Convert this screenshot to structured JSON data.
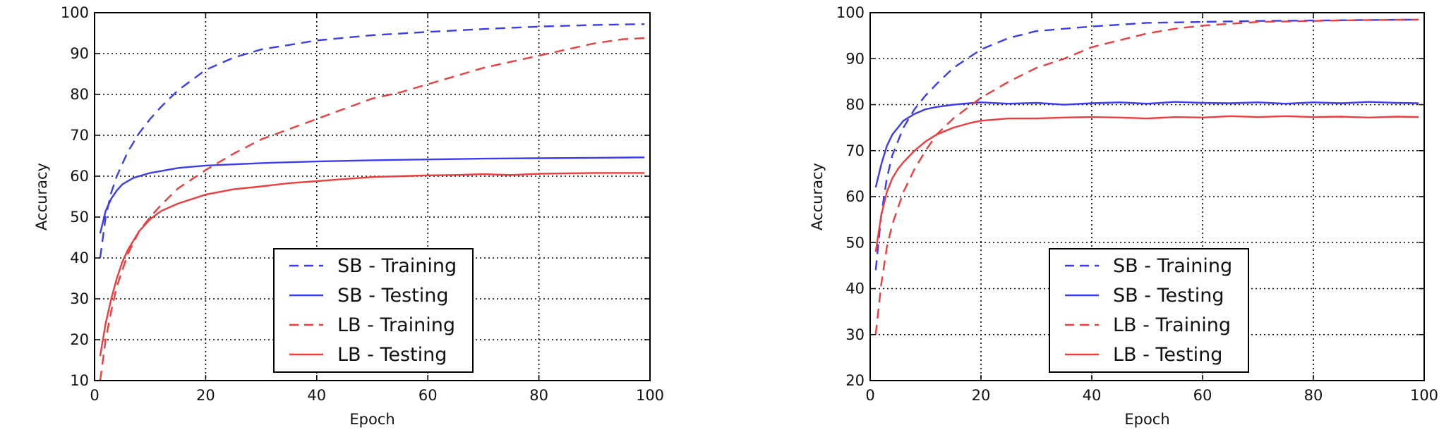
{
  "chart_data": [
    {
      "type": "line",
      "xlabel": "Epoch",
      "ylabel": "Accuracy",
      "xlim": [
        0,
        100
      ],
      "ylim": [
        10,
        100
      ],
      "xticks": [
        0,
        20,
        40,
        60,
        80,
        100
      ],
      "yticks": [
        10,
        20,
        30,
        40,
        50,
        60,
        70,
        80,
        90,
        100
      ],
      "grid": true,
      "legend_position": "lower-center",
      "series": [
        {
          "name": "SB - Training",
          "color": "#3b3bf5",
          "dash": "dashed",
          "x": [
            1,
            2,
            3,
            4,
            6,
            8,
            10,
            12,
            15,
            20,
            25,
            30,
            40,
            50,
            60,
            70,
            80,
            90,
            99
          ],
          "y": [
            40,
            50,
            56,
            60,
            66,
            70.5,
            74,
            77,
            81,
            86,
            89,
            91,
            93.2,
            94.5,
            95.3,
            96,
            96.6,
            97,
            97.2
          ]
        },
        {
          "name": "SB - Testing",
          "color": "#3b3bf5",
          "dash": "solid",
          "x": [
            1,
            2,
            3,
            4,
            5,
            7,
            10,
            15,
            20,
            25,
            30,
            40,
            50,
            60,
            70,
            80,
            90,
            99
          ],
          "y": [
            46,
            51.5,
            54.5,
            56.5,
            58,
            59.6,
            60.8,
            62,
            62.6,
            62.9,
            63.2,
            63.6,
            63.9,
            64.1,
            64.3,
            64.4,
            64.5,
            64.6
          ]
        },
        {
          "name": "LB - Training",
          "color": "#f03c3c",
          "dash": "dashed",
          "x": [
            1,
            2,
            3,
            4,
            6,
            8,
            10,
            12,
            15,
            20,
            25,
            30,
            35,
            40,
            45,
            50,
            55,
            60,
            65,
            70,
            75,
            80,
            85,
            90,
            95,
            99
          ],
          "y": [
            10,
            20,
            27,
            33,
            41,
            46.5,
            50,
            53,
            57,
            61.5,
            65.5,
            69,
            71.5,
            74,
            76.5,
            79,
            80.5,
            82.5,
            84.5,
            86.5,
            88,
            89.5,
            91,
            92.5,
            93.5,
            93.8
          ]
        },
        {
          "name": "LB - Testing",
          "color": "#f03c3c",
          "dash": "solid",
          "x": [
            1,
            2,
            3,
            4,
            5,
            6,
            8,
            10,
            12,
            15,
            20,
            25,
            30,
            35,
            40,
            45,
            50,
            55,
            60,
            65,
            70,
            75,
            80,
            85,
            90,
            95,
            99
          ],
          "y": [
            16,
            24,
            30,
            35,
            39,
            42,
            46.5,
            49.5,
            51.5,
            53.3,
            55.5,
            56.8,
            57.5,
            58.3,
            58.8,
            59.3,
            59.8,
            60,
            60.2,
            60.3,
            60.5,
            60.3,
            60.6,
            60.7,
            60.8,
            60.8,
            60.8
          ]
        }
      ]
    },
    {
      "type": "line",
      "xlabel": "Epoch",
      "ylabel": "Accuracy",
      "xlim": [
        0,
        100
      ],
      "ylim": [
        20,
        100
      ],
      "xticks": [
        0,
        20,
        40,
        60,
        80,
        100
      ],
      "yticks": [
        20,
        30,
        40,
        50,
        60,
        70,
        80,
        90,
        100
      ],
      "grid": true,
      "legend_position": "lower-center",
      "series": [
        {
          "name": "SB - Training",
          "color": "#3b3bf5",
          "dash": "dashed",
          "x": [
            1,
            2,
            3,
            4,
            6,
            8,
            10,
            12,
            15,
            20,
            25,
            30,
            40,
            50,
            60,
            70,
            80,
            90,
            99
          ],
          "y": [
            44,
            56,
            64,
            69,
            75,
            79,
            82,
            84.5,
            88,
            92,
            94.5,
            96,
            97,
            97.8,
            98,
            98.2,
            98.3,
            98.4,
            98.5
          ]
        },
        {
          "name": "SB - Testing",
          "color": "#3b3bf5",
          "dash": "solid",
          "x": [
            1,
            2,
            3,
            4,
            5,
            6,
            8,
            10,
            12,
            15,
            18,
            20,
            25,
            30,
            35,
            40,
            45,
            50,
            55,
            60,
            65,
            70,
            75,
            80,
            85,
            90,
            95,
            99
          ],
          "y": [
            62,
            67,
            71,
            73.5,
            75,
            76.5,
            78,
            79,
            79.5,
            80,
            80.3,
            80.5,
            80.2,
            80.4,
            80,
            80.3,
            80.5,
            80.2,
            80.6,
            80.4,
            80.3,
            80.5,
            80.2,
            80.5,
            80.3,
            80.6,
            80.4,
            80.3
          ]
        },
        {
          "name": "LB - Training",
          "color": "#f03c3c",
          "dash": "dashed",
          "x": [
            1,
            2,
            3,
            4,
            6,
            8,
            10,
            12,
            15,
            20,
            25,
            30,
            35,
            40,
            45,
            50,
            55,
            60,
            65,
            70,
            80,
            90,
            99
          ],
          "y": [
            30,
            41,
            49,
            54,
            61,
            66,
            70,
            73.5,
            77,
            81.5,
            85,
            88,
            90,
            92.5,
            94,
            95.5,
            96.5,
            97.2,
            97.6,
            98,
            98.2,
            98.4,
            98.5
          ]
        },
        {
          "name": "LB - Testing",
          "color": "#f03c3c",
          "dash": "solid",
          "x": [
            1,
            2,
            3,
            4,
            5,
            6,
            8,
            10,
            12,
            15,
            18,
            20,
            25,
            30,
            35,
            40,
            45,
            50,
            55,
            60,
            65,
            70,
            75,
            80,
            85,
            90,
            95,
            99
          ],
          "y": [
            48,
            56,
            61,
            64,
            66,
            67.5,
            70,
            72,
            73.5,
            75,
            76,
            76.5,
            77,
            77,
            77.2,
            77.3,
            77.2,
            77,
            77.3,
            77.2,
            77.5,
            77.3,
            77.5,
            77.3,
            77.4,
            77.2,
            77.4,
            77.3
          ]
        }
      ]
    }
  ]
}
